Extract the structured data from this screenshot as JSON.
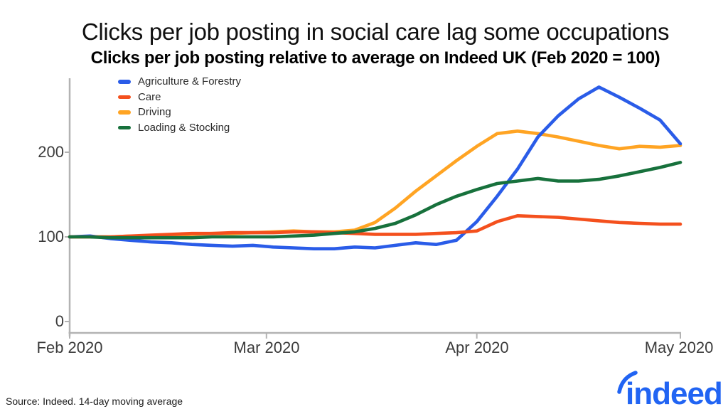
{
  "source_note": "Source: Indeed. 14-day moving average",
  "logo_text": "indeed",
  "colors": {
    "logo_blue": "#2164F3",
    "axis_gray": "#B3B3B3",
    "series_blue": "#2A5CE8",
    "series_orange_red": "#F4501D",
    "series_amber": "#FFA423",
    "series_green": "#17713C"
  },
  "chart_data": {
    "type": "line",
    "title": "Clicks per job posting in social care lag some occupations",
    "subtitle": "Clicks per job posting relative to average on Indeed UK (Feb 2020 = 100)",
    "grid": false,
    "legend_position": "top-left",
    "axis_color": "#B3B3B3",
    "y_axis": {
      "range": [
        0,
        295
      ]
    },
    "y_ticks": [
      {
        "label": "0",
        "value": 0
      },
      {
        "label": "100",
        "value": 100
      },
      {
        "label": "200",
        "value": 200
      }
    ],
    "x_ticks": [
      {
        "label": "Feb 2020",
        "day": 0
      },
      {
        "label": "Mar 2020",
        "day": 29
      },
      {
        "label": "Apr 2020",
        "day": 60
      },
      {
        "label": "May 2020",
        "day": 90
      }
    ],
    "x_range_days": [
      0,
      90
    ],
    "x_days": [
      0,
      3,
      6,
      9,
      12,
      15,
      18,
      21,
      24,
      27,
      30,
      33,
      36,
      39,
      42,
      45,
      48,
      51,
      54,
      57,
      60,
      63,
      66,
      69,
      72,
      75,
      78,
      81,
      84,
      87,
      90
    ],
    "series": [
      {
        "name": "Agriculture & Forestry",
        "color": "#2A5CE8",
        "values": [
          100,
          101,
          98,
          96,
          94,
          93,
          91,
          90,
          89,
          90,
          88,
          87,
          86,
          86,
          88,
          87,
          90,
          93,
          91,
          96,
          118,
          148,
          180,
          218,
          243,
          263,
          277,
          265,
          252,
          238,
          210
        ]
      },
      {
        "name": "Care",
        "color": "#F4501D",
        "values": [
          100,
          100,
          100,
          101,
          102,
          103,
          104,
          104,
          105,
          105,
          105,
          106,
          106,
          105,
          104,
          103,
          103,
          103,
          104,
          105,
          107,
          118,
          125,
          124,
          123,
          121,
          119,
          117,
          116,
          115,
          115
        ]
      },
      {
        "name": "Driving",
        "color": "#FFA423",
        "values": [
          100,
          100,
          100,
          101,
          101,
          102,
          103,
          104,
          104,
          105,
          106,
          107,
          106,
          106,
          108,
          117,
          134,
          154,
          172,
          190,
          207,
          222,
          225,
          222,
          218,
          213,
          208,
          204,
          207,
          206,
          208
        ]
      },
      {
        "name": "Loading & Stocking",
        "color": "#17713C",
        "values": [
          100,
          100,
          99,
          99,
          99,
          99,
          99,
          100,
          100,
          100,
          100,
          101,
          102,
          104,
          106,
          110,
          116,
          126,
          138,
          148,
          156,
          163,
          166,
          169,
          166,
          166,
          168,
          172,
          177,
          182,
          188
        ]
      }
    ]
  }
}
